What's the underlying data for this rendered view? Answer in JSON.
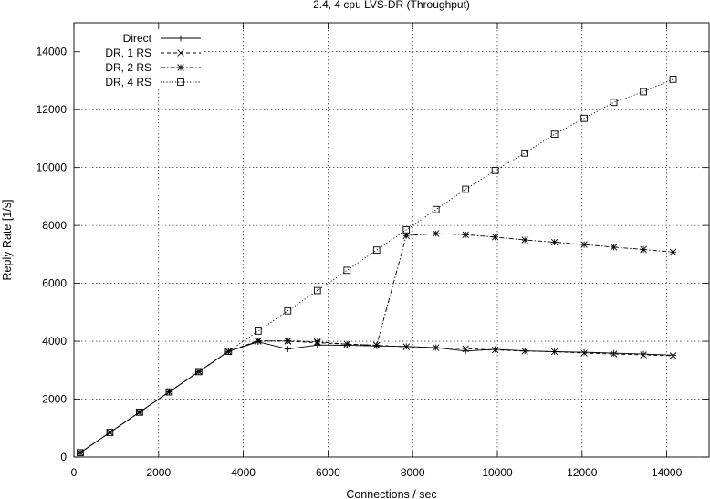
{
  "chart_data": {
    "type": "line",
    "title": "2.4, 4 cpu LVS-DR (Throughput)",
    "xlabel": "Connections / sec",
    "ylabel": "Reply Rate [1/s]",
    "xlim": [
      0,
      15000
    ],
    "ylim": [
      0,
      15000
    ],
    "xticks": [
      0,
      2000,
      4000,
      6000,
      8000,
      10000,
      12000,
      14000
    ],
    "yticks": [
      0,
      2000,
      4000,
      6000,
      8000,
      10000,
      12000,
      14000
    ],
    "grid": true,
    "legend_position": "top-left",
    "series": [
      {
        "name": "Direct",
        "marker": "plus",
        "dash": "solid",
        "x": [
          150,
          850,
          1550,
          2250,
          2950,
          3650,
          4350,
          5050,
          5750,
          6450,
          7150,
          7850,
          8550,
          9250,
          9950,
          10650,
          11350,
          12050,
          12750,
          13450,
          14150
        ],
        "y": [
          150,
          850,
          1550,
          2250,
          2950,
          3650,
          3980,
          3730,
          3870,
          3860,
          3840,
          3820,
          3780,
          3660,
          3720,
          3670,
          3640,
          3620,
          3590,
          3560,
          3520
        ]
      },
      {
        "name": "DR, 1 RS",
        "marker": "cross",
        "dash": "dash",
        "x": [
          150,
          850,
          1550,
          2250,
          2950,
          3650,
          4350,
          5050,
          5750,
          6450,
          7150,
          7850,
          8550,
          9250,
          9950,
          10650,
          11350,
          12050,
          12750,
          13450,
          14150
        ],
        "y": [
          150,
          850,
          1550,
          2250,
          2950,
          3650,
          4020,
          4000,
          3950,
          3900,
          3860,
          3810,
          3780,
          3740,
          3700,
          3660,
          3640,
          3590,
          3560,
          3530,
          3500
        ]
      },
      {
        "name": "DR, 2 RS",
        "marker": "star",
        "dash": "dashdot",
        "x": [
          150,
          850,
          1550,
          2250,
          2950,
          3650,
          4350,
          5050,
          5750,
          6450,
          7150,
          7850,
          8550,
          9250,
          9950,
          10650,
          11350,
          12050,
          12750,
          13450,
          14150
        ],
        "y": [
          150,
          850,
          1550,
          2250,
          2950,
          3650,
          4000,
          4020,
          3980,
          3900,
          3860,
          7650,
          7720,
          7680,
          7600,
          7500,
          7420,
          7340,
          7250,
          7170,
          7080
        ]
      },
      {
        "name": "DR, 4 RS",
        "marker": "square",
        "dash": "dot",
        "x": [
          150,
          850,
          1550,
          2250,
          2950,
          3650,
          4350,
          5050,
          5750,
          6450,
          7150,
          7850,
          8550,
          9250,
          9950,
          10650,
          11350,
          12050,
          12750,
          13450,
          14150
        ],
        "y": [
          150,
          850,
          1550,
          2250,
          2950,
          3650,
          4350,
          5050,
          5750,
          6450,
          7150,
          7850,
          8550,
          9250,
          9900,
          10500,
          11150,
          11700,
          12250,
          12620,
          13050
        ]
      }
    ]
  }
}
